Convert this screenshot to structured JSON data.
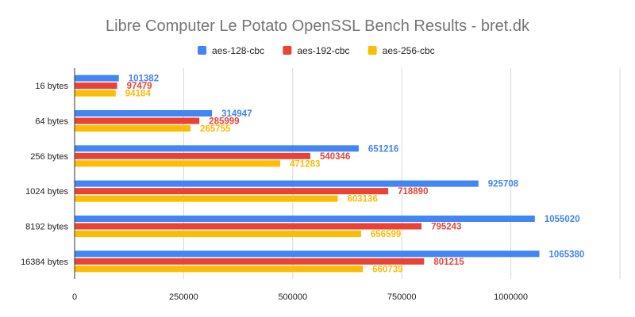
{
  "chart_data": {
    "type": "bar",
    "orientation": "horizontal",
    "title": "Libre Computer Le Potato OpenSSL Bench Results - bret.dk",
    "categories": [
      "16 bytes",
      "64 bytes",
      "256 bytes",
      "1024 bytes",
      "8192 bytes",
      "16384 bytes"
    ],
    "series": [
      {
        "name": "aes-128-cbc",
        "color": "#4285f4",
        "values": [
          101382,
          314947,
          651216,
          925708,
          1055020,
          1065380
        ]
      },
      {
        "name": "aes-192-cbc",
        "color": "#ea4335",
        "values": [
          97479,
          285999,
          540346,
          718890,
          795243,
          801215
        ]
      },
      {
        "name": "aes-256-cbc",
        "color": "#fbbc04",
        "values": [
          94184,
          265755,
          471283,
          603136,
          656599,
          660739
        ]
      }
    ],
    "xlim": [
      0,
      1250000
    ],
    "xticks": [
      0,
      250000,
      500000,
      750000,
      1000000
    ],
    "grid": true,
    "legend_position": "top",
    "data_labels": true
  }
}
